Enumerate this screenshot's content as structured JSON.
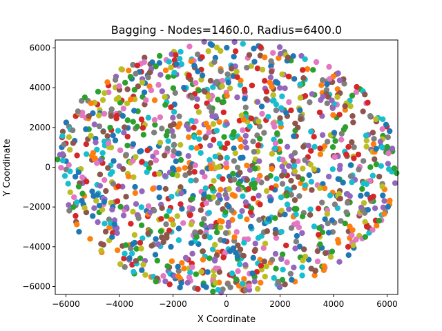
{
  "chart_data": {
    "type": "scatter",
    "title": "Bagging - Nodes=1460.0, Radius=6400.0",
    "xlabel": "X Coordinate",
    "ylabel": "Y Coordinate",
    "xlim": [
      -6400,
      6400
    ],
    "ylim": [
      -6400,
      6400
    ],
    "xticks": [
      -6000,
      -4000,
      -2000,
      0,
      2000,
      4000,
      6000
    ],
    "yticks": [
      -6000,
      -4000,
      -2000,
      0,
      2000,
      4000,
      6000
    ],
    "xtick_labels": [
      "−6000",
      "−4000",
      "−2000",
      "0",
      "2000",
      "4000",
      "6000"
    ],
    "ytick_labels": [
      "−6000",
      "−4000",
      "−2000",
      "0",
      "2000",
      "4000",
      "6000"
    ],
    "node_count": 1460,
    "radius": 6400,
    "region": "disk centered at (0, 0) of radius 6400 (values read off the axes)",
    "point_colors": [
      "#1f77b4",
      "#ff7f0e",
      "#2ca02c",
      "#d62728",
      "#9467bd",
      "#8c564b",
      "#e377c2",
      "#7f7f7f",
      "#bcbd22",
      "#17becf"
    ],
    "sample_points": [
      {
        "x": -6100,
        "y": 600
      },
      {
        "x": -5900,
        "y": -1900
      },
      {
        "x": -5500,
        "y": 2700
      },
      {
        "x": -4800,
        "y": 3800
      },
      {
        "x": -4600,
        "y": -3900
      },
      {
        "x": -3200,
        "y": 5200
      },
      {
        "x": -2500,
        "y": 5600
      },
      {
        "x": -1700,
        "y": -5700
      },
      {
        "x": -600,
        "y": 6200
      },
      {
        "x": -200,
        "y": -6300
      },
      {
        "x": 300,
        "y": 6300
      },
      {
        "x": 1200,
        "y": 6100
      },
      {
        "x": 1900,
        "y": -5900
      },
      {
        "x": 2800,
        "y": 5600
      },
      {
        "x": 3600,
        "y": -5000
      },
      {
        "x": 4400,
        "y": 4200
      },
      {
        "x": 4700,
        "y": -3800
      },
      {
        "x": 5600,
        "y": 2300
      },
      {
        "x": 5800,
        "y": -2400
      },
      {
        "x": 6300,
        "y": -800
      },
      {
        "x": 6200,
        "y": 800
      },
      {
        "x": 0,
        "y": 0
      },
      {
        "x": 1500,
        "y": -1200
      },
      {
        "x": -2200,
        "y": 1800
      }
    ]
  }
}
